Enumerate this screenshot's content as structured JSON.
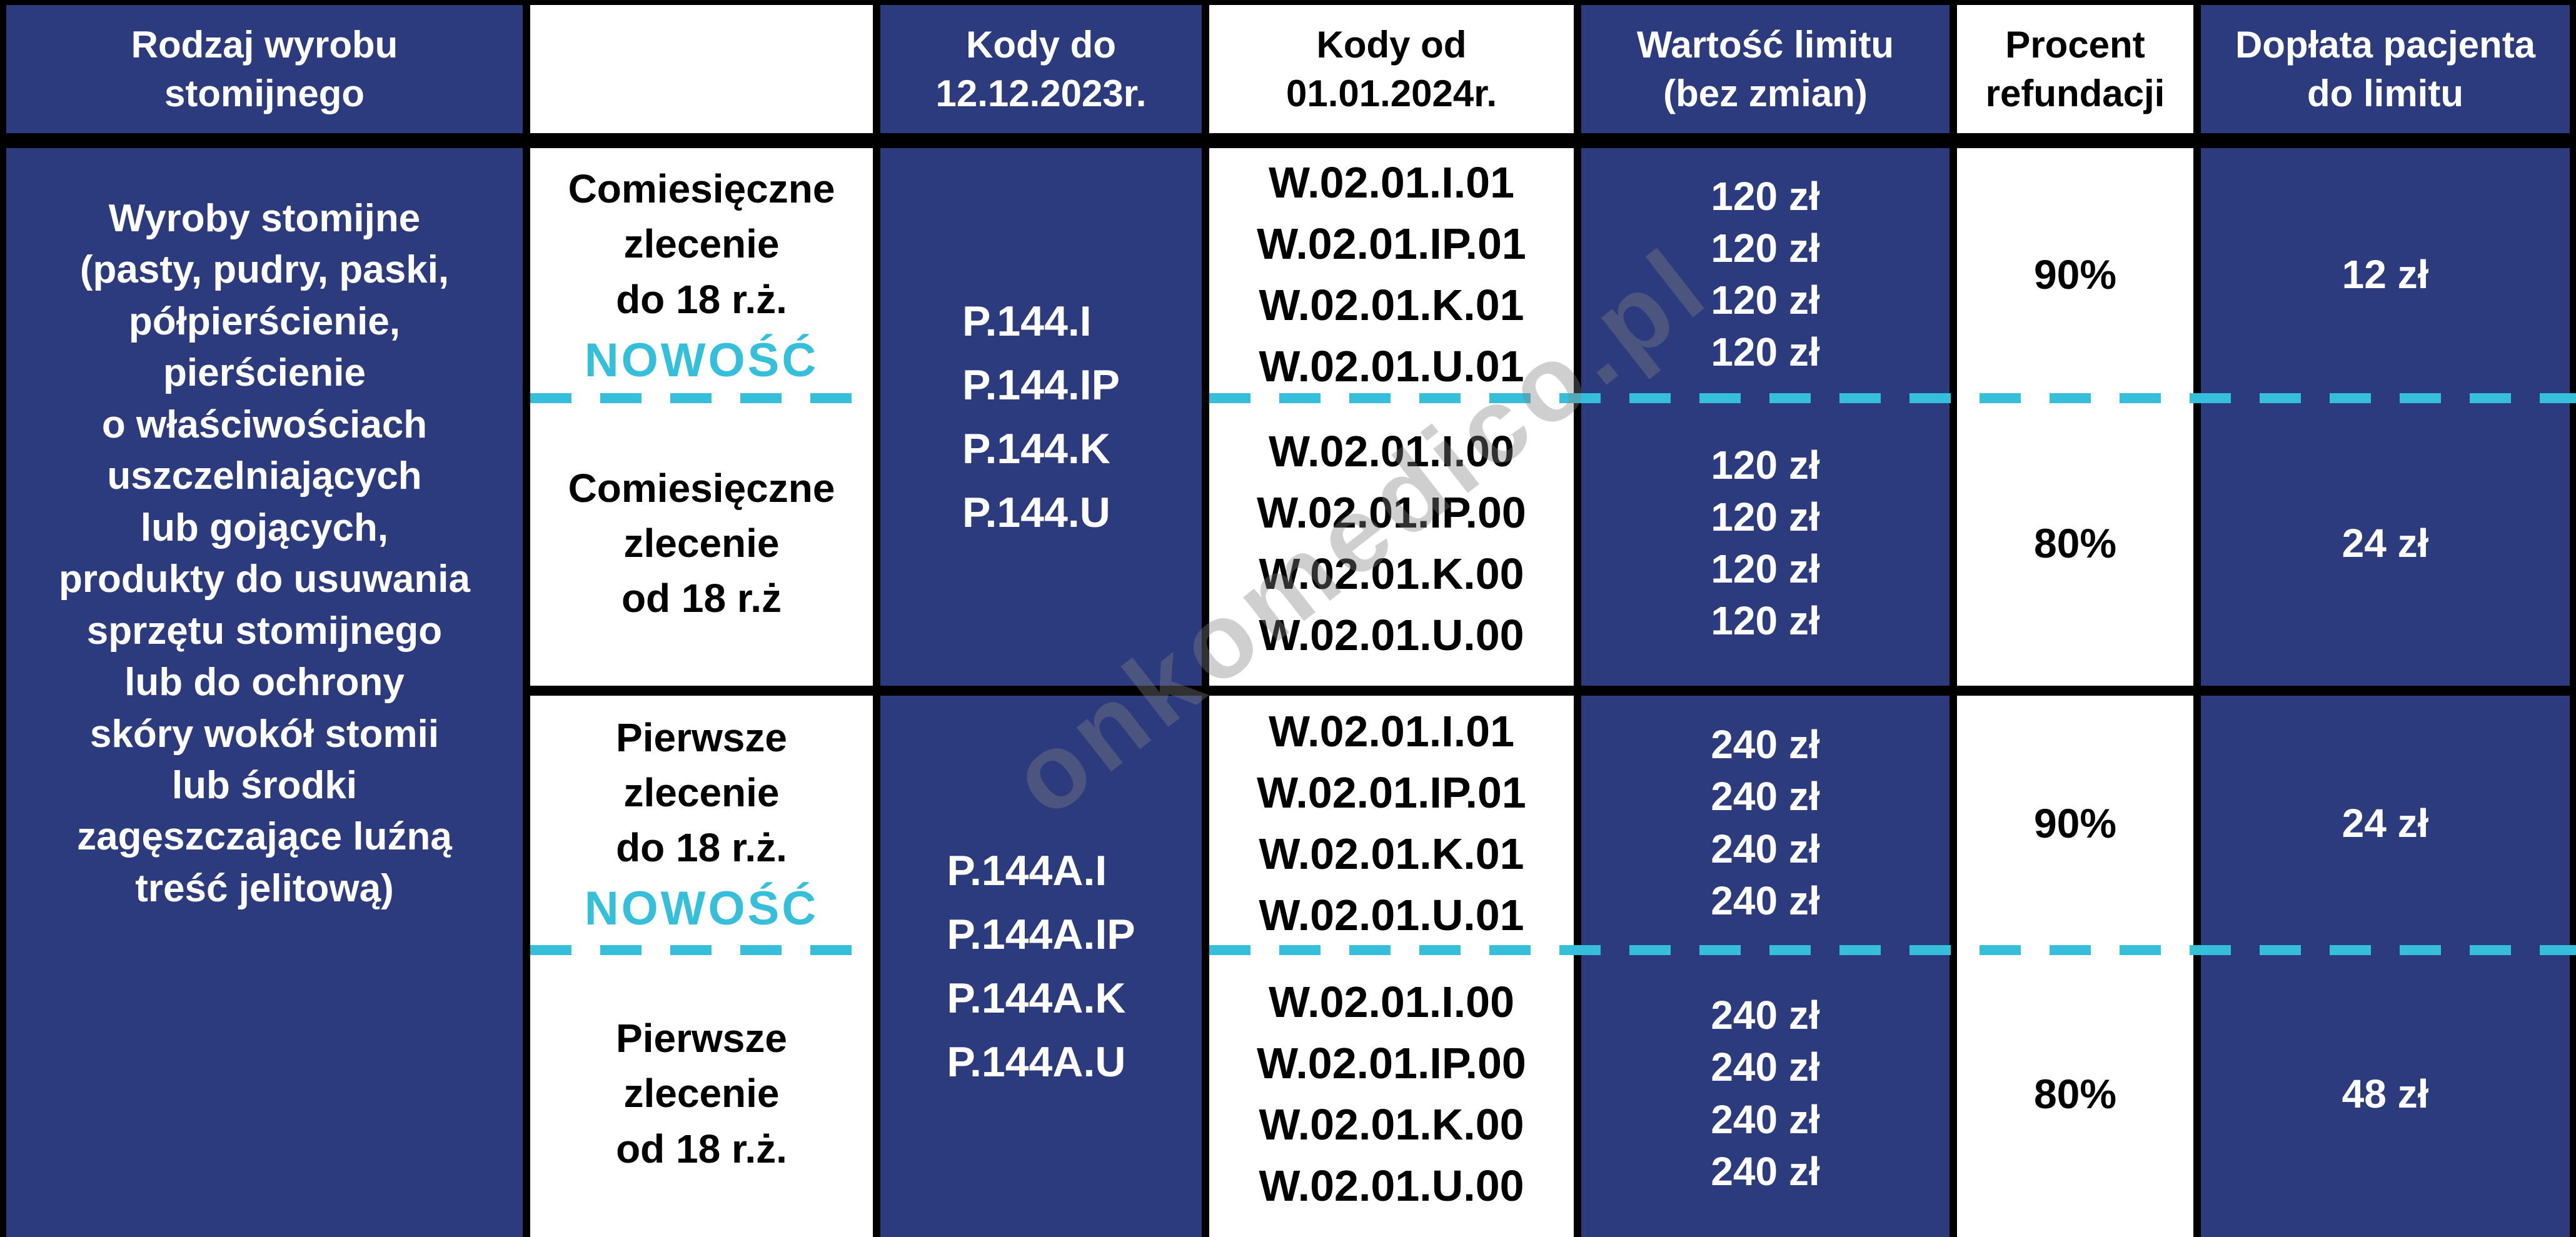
{
  "headers": {
    "col1": [
      "Rodzaj wyrobu",
      "stomijnego"
    ],
    "col2": "",
    "col3": [
      "Kody do",
      "12.12.2023r."
    ],
    "col4": [
      "Kody od",
      "01.01.2024r."
    ],
    "col5": [
      "Wartość limitu",
      "(bez zmian)"
    ],
    "col6": [
      "Procent",
      "refundacji"
    ],
    "col7": [
      "Dopłata pacjenta",
      "do limitu"
    ]
  },
  "product_lines": [
    "Wyroby stomijne",
    "(pasty, pudry, paski,",
    "półpierścienie,",
    "pierścienie",
    "o właściwościach",
    "uszczelniających",
    "lub gojących,",
    "produkty do usuwania",
    "sprzętu stomijnego",
    "lub do ochrony",
    "skóry wokół stomii",
    "lub środki",
    "zagęszczające luźną",
    "treść jelitową)"
  ],
  "groups": [
    {
      "old_codes": [
        "P.144.I",
        "P.144.IP",
        "P.144.K",
        "P.144.U"
      ],
      "rows": [
        {
          "type_lines": [
            "Comiesięczne",
            "zlecenie",
            "do 18 r.ż."
          ],
          "badge": "NOWOŚĆ",
          "new_codes": [
            "W.02.01.I.01",
            "W.02.01.IP.01",
            "W.02.01.K.01",
            "W.02.01.U.01"
          ],
          "limits": [
            "120 zł",
            "120 zł",
            "120 zł",
            "120 zł"
          ],
          "refund": "90%",
          "copay": "12 zł"
        },
        {
          "type_lines": [
            "Comiesięczne",
            "zlecenie",
            "od 18 r.ż"
          ],
          "badge": "",
          "new_codes": [
            "W.02.01.I.00",
            "W.02.01.IP.00",
            "W.02.01.K.00",
            "W.02.01.U.00"
          ],
          "limits": [
            "120 zł",
            "120 zł",
            "120 zł",
            "120 zł"
          ],
          "refund": "80%",
          "copay": "24 zł"
        }
      ]
    },
    {
      "old_codes": [
        "P.144A.I",
        "P.144A.IP",
        "P.144A.K",
        "P.144A.U"
      ],
      "rows": [
        {
          "type_lines": [
            "Pierwsze",
            "zlecenie",
            "do 18 r.ż."
          ],
          "badge": "NOWOŚĆ",
          "new_codes": [
            "W.02.01.I.01",
            "W.02.01.IP.01",
            "W.02.01.K.01",
            "W.02.01.U.01"
          ],
          "limits": [
            "240 zł",
            "240 zł",
            "240 zł",
            "240 zł"
          ],
          "refund": "90%",
          "copay": "24 zł"
        },
        {
          "type_lines": [
            "Pierwsze",
            "zlecenie",
            "od 18 r.ż."
          ],
          "badge": "",
          "new_codes": [
            "W.02.01.I.00",
            "W.02.01.IP.00",
            "W.02.01.K.00",
            "W.02.01.U.00"
          ],
          "limits": [
            "240 zł",
            "240 zł",
            "240 zł",
            "240 zł"
          ],
          "refund": "80%",
          "copay": "48 zł"
        }
      ]
    }
  ],
  "watermark": "onkomedico.pl",
  "colors": {
    "navy": "#2C3B7D",
    "cyan": "#36BFDA",
    "border": "#000000",
    "text_light": "#FFFFFF",
    "text_dark": "#000000"
  }
}
